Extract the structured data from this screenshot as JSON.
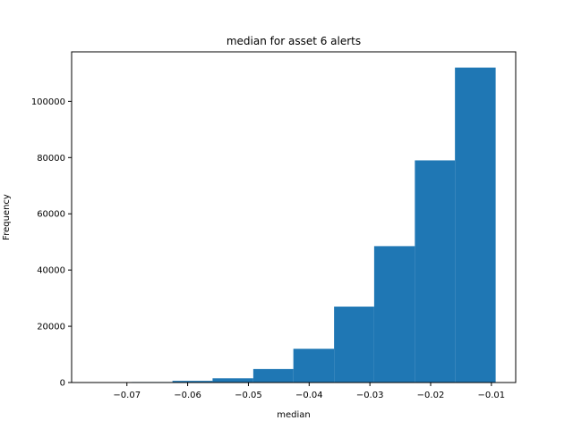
{
  "chart_data": {
    "type": "bar",
    "title": "median for asset 6 alerts",
    "xlabel": "median",
    "ylabel": "Frequency",
    "bin_edges": [
      -0.0758,
      -0.0692,
      -0.0625,
      -0.0559,
      -0.0492,
      -0.0426,
      -0.0359,
      -0.0293,
      -0.0226,
      -0.016,
      -0.0093
    ],
    "values": [
      60,
      180,
      600,
      1500,
      4800,
      12000,
      27000,
      48500,
      79000,
      112000
    ],
    "xlim": [
      -0.0791,
      -0.006
    ],
    "ylim": [
      0,
      117600
    ],
    "xticks": [
      -0.07,
      -0.06,
      -0.05,
      -0.04,
      -0.03,
      -0.02,
      -0.01
    ],
    "xtick_labels": [
      "−0.07",
      "−0.06",
      "−0.05",
      "−0.04",
      "−0.03",
      "−0.02",
      "−0.01"
    ],
    "yticks": [
      0,
      20000,
      40000,
      60000,
      80000,
      100000
    ],
    "ytick_labels": [
      "0",
      "20000",
      "40000",
      "60000",
      "80000",
      "100000"
    ],
    "bar_color": "#1f77b4",
    "grid": false
  }
}
